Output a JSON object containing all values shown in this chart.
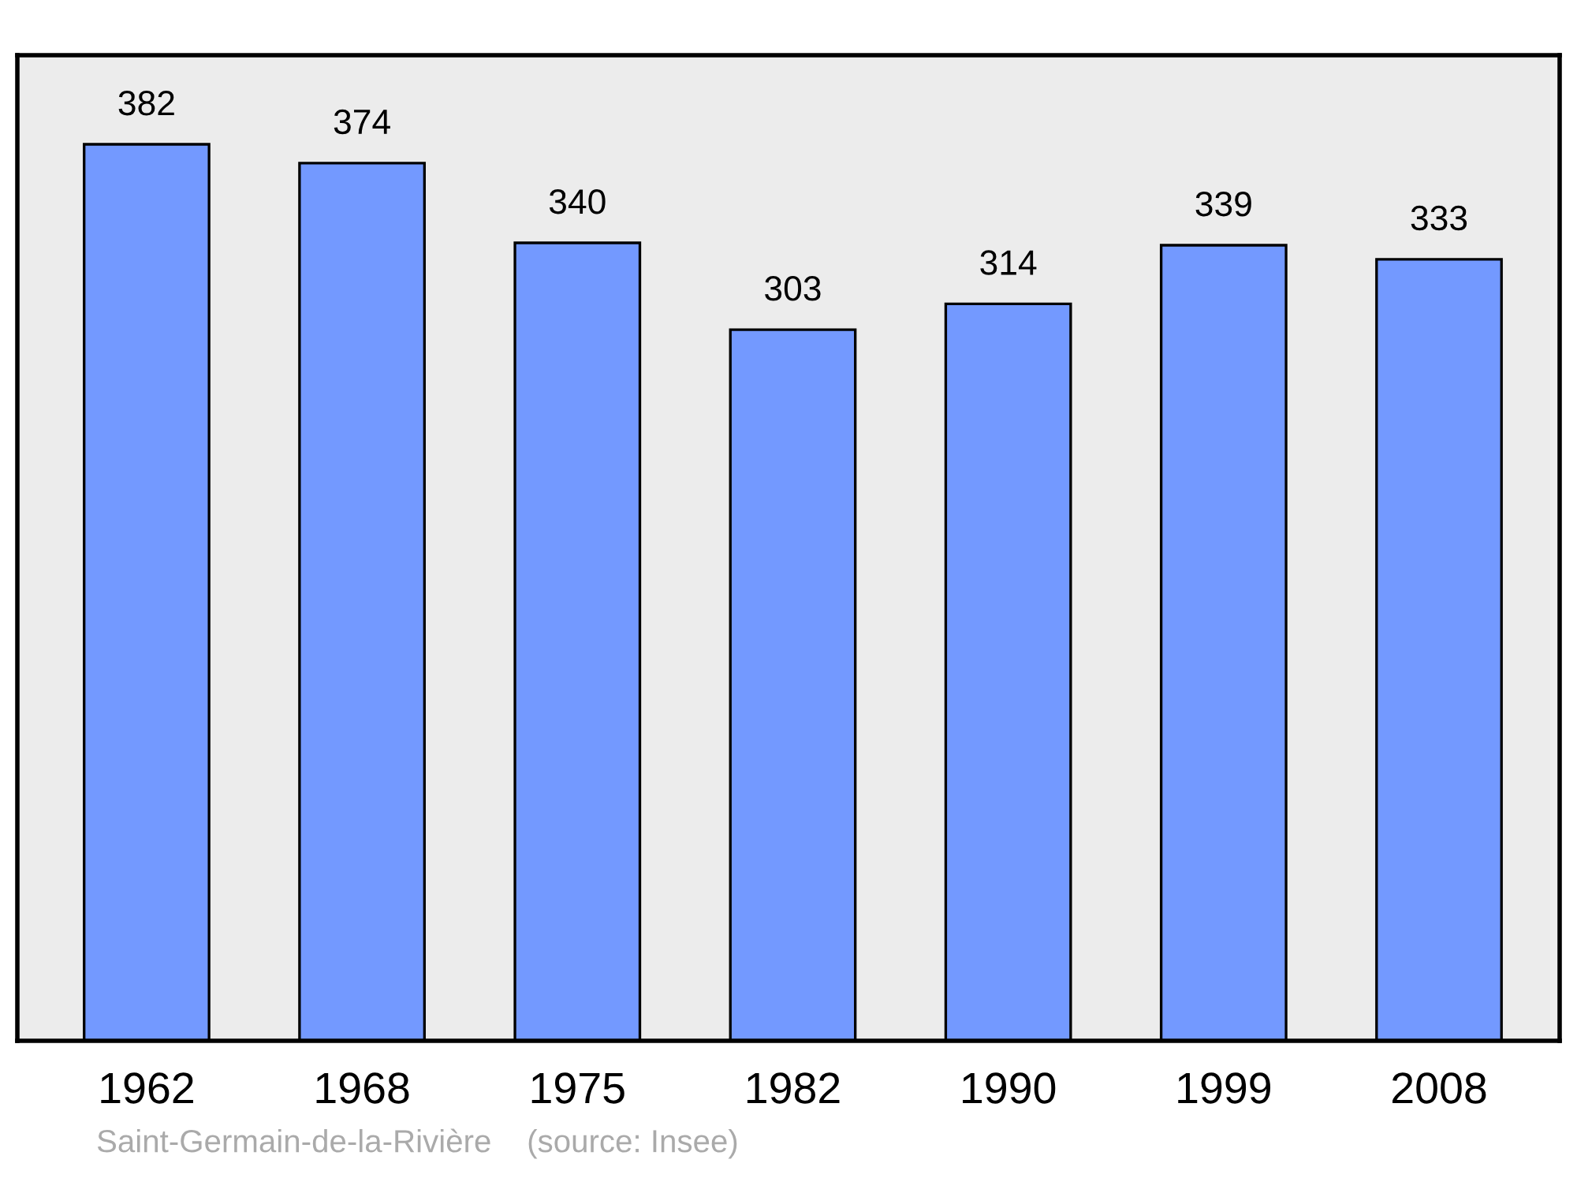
{
  "chart_data": {
    "type": "bar",
    "categories": [
      "1962",
      "1968",
      "1975",
      "1982",
      "1990",
      "1999",
      "2008"
    ],
    "values": [
      382,
      374,
      340,
      303,
      314,
      339,
      333
    ],
    "color": "#7399ff",
    "ylim": [
      0,
      420
    ],
    "tick_labels": "x",
    "data_labels": true,
    "grid": false,
    "legend": false,
    "annotations": [
      "Saint-Germain-de-la-Rivière    (source: Insee)"
    ]
  }
}
